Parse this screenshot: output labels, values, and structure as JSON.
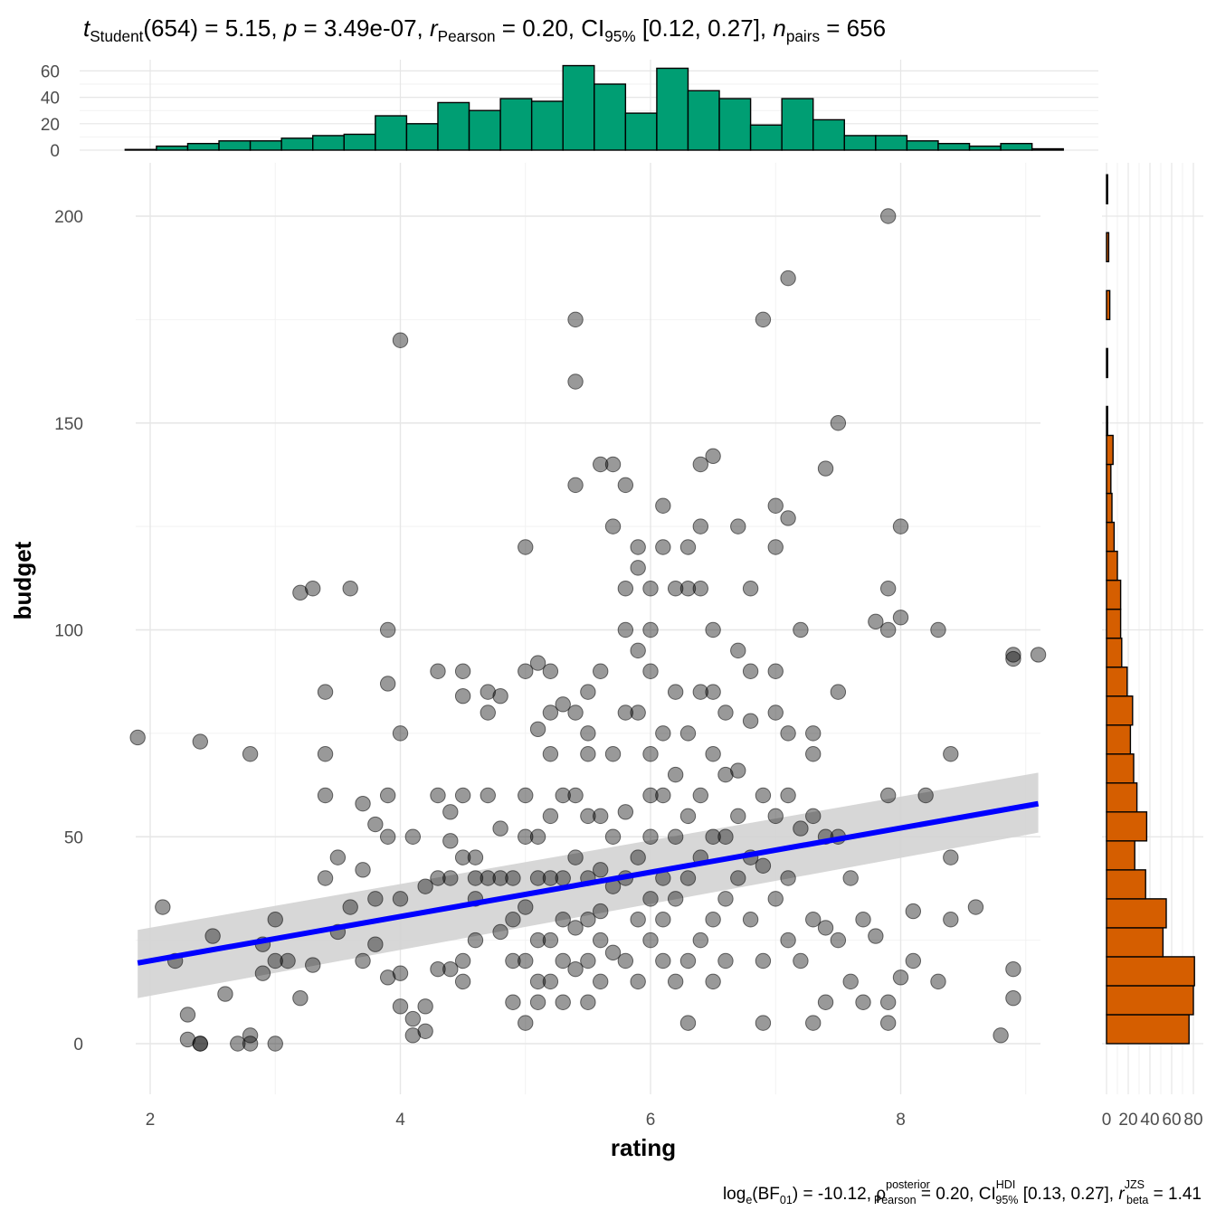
{
  "chart_data": {
    "type": "scatter",
    "xlabel": "rating",
    "ylabel": "budget",
    "xlim": [
      1.7,
      9.5
    ],
    "ylim": [
      -13,
      218
    ],
    "x_ticks": [
      2,
      4,
      6,
      8
    ],
    "y_ticks": [
      0,
      50,
      100,
      150,
      200
    ],
    "grid": true,
    "subtitle_top": {
      "t_label": "t",
      "t_sub": "Student",
      "t_val": "(654) = 5.15, ",
      "p_label": "p",
      "p_val": " = 3.49e-07, ",
      "r_label": "r",
      "r_sub": "Pearson",
      "r_val": " = 0.20, CI",
      "ci_sub": "95%",
      "ci_val": " [0.12, 0.27], ",
      "n_label": "n",
      "n_sub": "pairs",
      "n_val": " = 656"
    },
    "subtitle_bottom": {
      "bf_text": "log",
      "bf_sub": "e",
      "bf_val": "(BF",
      "bf_sub2": "01",
      "bf_val2": ") = -10.12, ",
      "rho": "ρ",
      "rho_sup": "posterior",
      "rho_sub": "Pearson",
      "rho_val": " = 0.20, CI",
      "ci_sup": "HDI",
      "ci_sub": "95%",
      "ci_val": " [0.13, 0.27], ",
      "r_label": "r",
      "r_sup": "JZS",
      "r_sub": "beta",
      "r_val": " = 1.41"
    },
    "regression": {
      "x_range": [
        1.9,
        9.1
      ],
      "y_start": 19.5,
      "y_end": 58,
      "ci_lower": [
        11,
        51
      ],
      "ci_upper": [
        27.5,
        65.5
      ],
      "line_color": "#0000ff",
      "band_color": "#d3d3d3"
    },
    "points": [
      [
        1.9,
        74
      ],
      [
        2.1,
        33
      ],
      [
        2.2,
        20
      ],
      [
        2.3,
        7
      ],
      [
        2.3,
        1
      ],
      [
        2.4,
        0
      ],
      [
        2.4,
        0
      ],
      [
        2.4,
        73
      ],
      [
        2.5,
        26
      ],
      [
        2.6,
        12
      ],
      [
        2.7,
        0
      ],
      [
        2.8,
        0
      ],
      [
        2.8,
        2
      ],
      [
        2.8,
        70
      ],
      [
        2.9,
        17
      ],
      [
        2.9,
        24
      ],
      [
        3.0,
        0
      ],
      [
        3.0,
        30
      ],
      [
        3.0,
        20
      ],
      [
        3.1,
        20
      ],
      [
        3.2,
        109
      ],
      [
        3.2,
        11
      ],
      [
        3.3,
        110
      ],
      [
        3.3,
        19
      ],
      [
        3.4,
        85
      ],
      [
        3.4,
        70
      ],
      [
        3.4,
        60
      ],
      [
        3.4,
        40
      ],
      [
        3.5,
        45
      ],
      [
        3.5,
        27
      ],
      [
        3.6,
        110
      ],
      [
        3.6,
        33
      ],
      [
        3.7,
        58
      ],
      [
        3.7,
        42
      ],
      [
        3.7,
        20
      ],
      [
        3.8,
        53
      ],
      [
        3.8,
        35
      ],
      [
        3.8,
        24
      ],
      [
        3.9,
        100
      ],
      [
        3.9,
        87
      ],
      [
        3.9,
        60
      ],
      [
        3.9,
        50
      ],
      [
        3.9,
        16
      ],
      [
        4.0,
        170
      ],
      [
        4.0,
        75
      ],
      [
        4.0,
        35
      ],
      [
        4.0,
        17
      ],
      [
        4.0,
        9
      ],
      [
        4.1,
        50
      ],
      [
        4.1,
        6
      ],
      [
        4.1,
        2
      ],
      [
        4.2,
        38
      ],
      [
        4.2,
        9
      ],
      [
        4.2,
        3
      ],
      [
        4.3,
        90
      ],
      [
        4.3,
        60
      ],
      [
        4.3,
        40
      ],
      [
        4.3,
        18
      ],
      [
        4.4,
        56
      ],
      [
        4.4,
        49
      ],
      [
        4.4,
        40
      ],
      [
        4.4,
        18
      ],
      [
        4.5,
        90
      ],
      [
        4.5,
        84
      ],
      [
        4.5,
        60
      ],
      [
        4.5,
        45
      ],
      [
        4.5,
        20
      ],
      [
        4.5,
        15
      ],
      [
        4.6,
        45
      ],
      [
        4.6,
        40
      ],
      [
        4.6,
        35
      ],
      [
        4.6,
        25
      ],
      [
        4.7,
        85
      ],
      [
        4.7,
        80
      ],
      [
        4.7,
        60
      ],
      [
        4.7,
        40
      ],
      [
        4.8,
        84
      ],
      [
        4.8,
        52
      ],
      [
        4.8,
        40
      ],
      [
        4.8,
        27
      ],
      [
        4.9,
        40
      ],
      [
        4.9,
        30
      ],
      [
        4.9,
        20
      ],
      [
        4.9,
        10
      ],
      [
        5.0,
        120
      ],
      [
        5.0,
        90
      ],
      [
        5.0,
        60
      ],
      [
        5.0,
        50
      ],
      [
        5.0,
        33
      ],
      [
        5.0,
        20
      ],
      [
        5.0,
        5
      ],
      [
        5.1,
        92
      ],
      [
        5.1,
        76
      ],
      [
        5.1,
        50
      ],
      [
        5.1,
        40
      ],
      [
        5.1,
        25
      ],
      [
        5.1,
        15
      ],
      [
        5.1,
        10
      ],
      [
        5.2,
        90
      ],
      [
        5.2,
        80
      ],
      [
        5.2,
        70
      ],
      [
        5.2,
        55
      ],
      [
        5.2,
        40
      ],
      [
        5.2,
        25
      ],
      [
        5.2,
        15
      ],
      [
        5.3,
        82
      ],
      [
        5.3,
        60
      ],
      [
        5.3,
        40
      ],
      [
        5.3,
        30
      ],
      [
        5.3,
        20
      ],
      [
        5.3,
        10
      ],
      [
        5.4,
        175
      ],
      [
        5.4,
        160
      ],
      [
        5.4,
        135
      ],
      [
        5.4,
        80
      ],
      [
        5.4,
        60
      ],
      [
        5.4,
        45
      ],
      [
        5.4,
        28
      ],
      [
        5.4,
        18
      ],
      [
        5.5,
        85
      ],
      [
        5.5,
        75
      ],
      [
        5.5,
        70
      ],
      [
        5.5,
        55
      ],
      [
        5.5,
        40
      ],
      [
        5.5,
        30
      ],
      [
        5.5,
        20
      ],
      [
        5.5,
        10
      ],
      [
        5.6,
        140
      ],
      [
        5.6,
        90
      ],
      [
        5.6,
        55
      ],
      [
        5.6,
        42
      ],
      [
        5.6,
        32
      ],
      [
        5.6,
        25
      ],
      [
        5.6,
        15
      ],
      [
        5.7,
        140
      ],
      [
        5.7,
        125
      ],
      [
        5.7,
        70
      ],
      [
        5.7,
        50
      ],
      [
        5.7,
        38
      ],
      [
        5.7,
        22
      ],
      [
        5.8,
        135
      ],
      [
        5.8,
        110
      ],
      [
        5.8,
        100
      ],
      [
        5.8,
        80
      ],
      [
        5.8,
        56
      ],
      [
        5.8,
        40
      ],
      [
        5.8,
        20
      ],
      [
        5.9,
        120
      ],
      [
        5.9,
        115
      ],
      [
        5.9,
        95
      ],
      [
        5.9,
        80
      ],
      [
        5.9,
        45
      ],
      [
        5.9,
        30
      ],
      [
        5.9,
        15
      ],
      [
        6.0,
        110
      ],
      [
        6.0,
        100
      ],
      [
        6.0,
        90
      ],
      [
        6.0,
        70
      ],
      [
        6.0,
        60
      ],
      [
        6.0,
        50
      ],
      [
        6.0,
        35
      ],
      [
        6.0,
        25
      ],
      [
        6.1,
        130
      ],
      [
        6.1,
        120
      ],
      [
        6.1,
        75
      ],
      [
        6.1,
        60
      ],
      [
        6.1,
        40
      ],
      [
        6.1,
        30
      ],
      [
        6.1,
        20
      ],
      [
        6.2,
        110
      ],
      [
        6.2,
        85
      ],
      [
        6.2,
        65
      ],
      [
        6.2,
        50
      ],
      [
        6.2,
        35
      ],
      [
        6.2,
        15
      ],
      [
        6.3,
        120
      ],
      [
        6.3,
        110
      ],
      [
        6.3,
        75
      ],
      [
        6.3,
        55
      ],
      [
        6.3,
        40
      ],
      [
        6.3,
        20
      ],
      [
        6.3,
        5
      ],
      [
        6.4,
        140
      ],
      [
        6.4,
        125
      ],
      [
        6.4,
        110
      ],
      [
        6.4,
        85
      ],
      [
        6.4,
        60
      ],
      [
        6.4,
        45
      ],
      [
        6.4,
        25
      ],
      [
        6.5,
        142
      ],
      [
        6.5,
        100
      ],
      [
        6.5,
        85
      ],
      [
        6.5,
        70
      ],
      [
        6.5,
        50
      ],
      [
        6.5,
        30
      ],
      [
        6.5,
        15
      ],
      [
        6.6,
        80
      ],
      [
        6.6,
        65
      ],
      [
        6.6,
        50
      ],
      [
        6.6,
        35
      ],
      [
        6.6,
        20
      ],
      [
        6.7,
        125
      ],
      [
        6.7,
        95
      ],
      [
        6.7,
        66
      ],
      [
        6.7,
        55
      ],
      [
        6.7,
        40
      ],
      [
        6.8,
        110
      ],
      [
        6.8,
        90
      ],
      [
        6.8,
        78
      ],
      [
        6.8,
        45
      ],
      [
        6.8,
        30
      ],
      [
        6.9,
        175
      ],
      [
        6.9,
        60
      ],
      [
        6.9,
        43
      ],
      [
        6.9,
        20
      ],
      [
        6.9,
        5
      ],
      [
        7.0,
        130
      ],
      [
        7.0,
        120
      ],
      [
        7.0,
        90
      ],
      [
        7.0,
        80
      ],
      [
        7.0,
        55
      ],
      [
        7.0,
        35
      ],
      [
        7.1,
        185
      ],
      [
        7.1,
        127
      ],
      [
        7.1,
        75
      ],
      [
        7.1,
        60
      ],
      [
        7.1,
        40
      ],
      [
        7.1,
        25
      ],
      [
        7.2,
        100
      ],
      [
        7.2,
        52
      ],
      [
        7.2,
        20
      ],
      [
        7.3,
        75
      ],
      [
        7.3,
        70
      ],
      [
        7.3,
        55
      ],
      [
        7.3,
        30
      ],
      [
        7.3,
        5
      ],
      [
        7.4,
        139
      ],
      [
        7.4,
        50
      ],
      [
        7.4,
        28
      ],
      [
        7.4,
        10
      ],
      [
        7.5,
        150
      ],
      [
        7.5,
        85
      ],
      [
        7.5,
        50
      ],
      [
        7.5,
        25
      ],
      [
        7.6,
        40
      ],
      [
        7.6,
        15
      ],
      [
        7.7,
        30
      ],
      [
        7.7,
        10
      ],
      [
        7.8,
        102
      ],
      [
        7.8,
        26
      ],
      [
        7.9,
        200
      ],
      [
        7.9,
        110
      ],
      [
        7.9,
        100
      ],
      [
        7.9,
        60
      ],
      [
        7.9,
        10
      ],
      [
        7.9,
        5
      ],
      [
        8.0,
        125
      ],
      [
        8.0,
        103
      ],
      [
        8.0,
        16
      ],
      [
        8.1,
        32
      ],
      [
        8.1,
        20
      ],
      [
        8.2,
        60
      ],
      [
        8.3,
        100
      ],
      [
        8.3,
        15
      ],
      [
        8.4,
        70
      ],
      [
        8.4,
        45
      ],
      [
        8.4,
        30
      ],
      [
        8.6,
        33
      ],
      [
        8.8,
        2
      ],
      [
        8.9,
        94
      ],
      [
        8.9,
        93
      ],
      [
        8.9,
        18
      ],
      [
        8.9,
        11
      ],
      [
        9.1,
        94
      ]
    ],
    "histogram_top": {
      "fill": "#009e73",
      "bins": [
        [
          1.925,
          0.5
        ],
        [
          2.175,
          3
        ],
        [
          2.425,
          5
        ],
        [
          2.675,
          7
        ],
        [
          2.925,
          7
        ],
        [
          3.175,
          9
        ],
        [
          3.425,
          11
        ],
        [
          3.675,
          12
        ],
        [
          3.925,
          26
        ],
        [
          4.175,
          20
        ],
        [
          4.425,
          36
        ],
        [
          4.675,
          30
        ],
        [
          4.925,
          39
        ],
        [
          5.175,
          37
        ],
        [
          5.425,
          64
        ],
        [
          5.675,
          50
        ],
        [
          5.925,
          28
        ],
        [
          6.175,
          62
        ],
        [
          6.425,
          45
        ],
        [
          6.675,
          39
        ],
        [
          6.925,
          19
        ],
        [
          7.175,
          39
        ],
        [
          7.425,
          23
        ],
        [
          7.675,
          11
        ],
        [
          7.925,
          11
        ],
        [
          8.175,
          7
        ],
        [
          8.425,
          5
        ],
        [
          8.675,
          3
        ],
        [
          8.925,
          5
        ],
        [
          9.175,
          1
        ]
      ],
      "bin_width": 0.25,
      "y_ticks": [
        0,
        20,
        40,
        60
      ],
      "ylim": [
        0,
        66
      ]
    },
    "histogram_right": {
      "fill": "#d55e00",
      "bins": [
        [
          0,
          76
        ],
        [
          7,
          80
        ],
        [
          14,
          81
        ],
        [
          21,
          52
        ],
        [
          28,
          55
        ],
        [
          35,
          36
        ],
        [
          42,
          26
        ],
        [
          49,
          37
        ],
        [
          56,
          28
        ],
        [
          63,
          25
        ],
        [
          70,
          22
        ],
        [
          77,
          24
        ],
        [
          84,
          19
        ],
        [
          91,
          14
        ],
        [
          98,
          13
        ],
        [
          105,
          13
        ],
        [
          112,
          10
        ],
        [
          119,
          7
        ],
        [
          126,
          5
        ],
        [
          133,
          4
        ],
        [
          140,
          6
        ],
        [
          147,
          1
        ],
        [
          161,
          1
        ],
        [
          175,
          3
        ],
        [
          189,
          2
        ],
        [
          203,
          1
        ]
      ],
      "bin_width": 7,
      "x_ticks": [
        0,
        20,
        40,
        60,
        80
      ],
      "xlim": [
        0,
        84
      ]
    }
  }
}
